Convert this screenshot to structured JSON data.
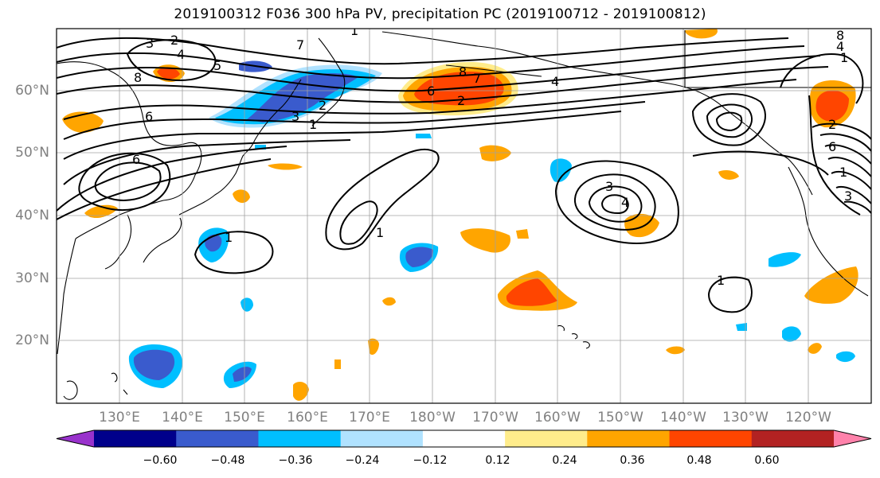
{
  "title": "2019100312 F036 300 hPa PV, precipitation PC (2019100712 - 2019100812)",
  "lat_labels": [
    "60°N",
    "50°N",
    "40°N",
    "30°N",
    "20°N"
  ],
  "lon_labels": [
    "130°E",
    "140°E",
    "150°E",
    "160°E",
    "170°E",
    "180°W",
    "170°W",
    "160°W",
    "150°W",
    "140°W",
    "130°W",
    "120°W"
  ],
  "colorbar": {
    "ticks": [
      "−0.60",
      "−0.48",
      "−0.36",
      "−0.24",
      "−0.12",
      "0.12",
      "0.24",
      "0.36",
      "0.48",
      "0.60"
    ],
    "colors": [
      "#9932CC",
      "#00008B",
      "#3A5BCD",
      "#00BFFF",
      "#B0E2FF",
      "#FFFFFF",
      "#FFEC8B",
      "#FFA500",
      "#FF4500",
      "#B22222",
      "#FF82AB"
    ]
  },
  "contour_labels": [
    "3",
    "2",
    "4",
    "5",
    "7",
    "8",
    "6",
    "6",
    "3",
    "2",
    "1",
    "6",
    "8",
    "7",
    "2",
    "4",
    "1",
    "3",
    "4",
    "1",
    "1",
    "3",
    "1",
    "8",
    "4",
    "2",
    "6",
    "1",
    "1"
  ],
  "colors": {
    "land_outline": "#000000",
    "grid": "#a0a0a0",
    "pv_contour": "#000000"
  }
}
